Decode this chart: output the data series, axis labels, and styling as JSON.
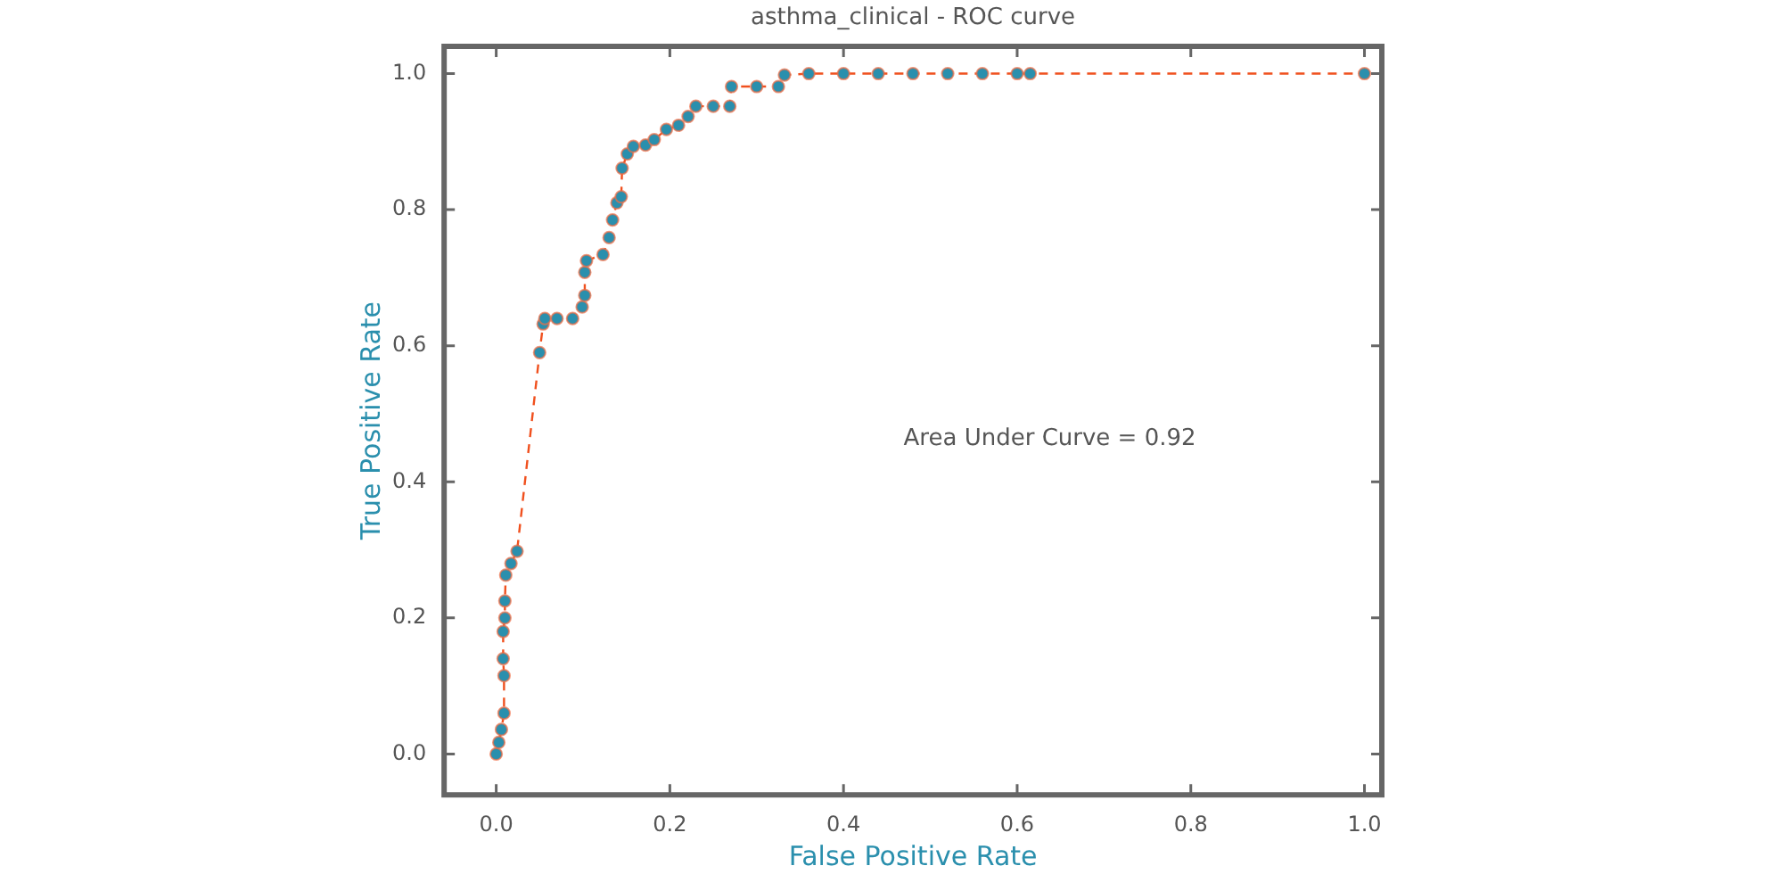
{
  "chart_data": {
    "type": "line",
    "title": "asthma_clinical - ROC curve",
    "xlabel": "False Positive Rate",
    "ylabel": "True Positive Rate",
    "annotations": [
      "Area Under Curve = 0.92"
    ],
    "xlim": [
      -0.06,
      1.02
    ],
    "ylim": [
      -0.06,
      1.04
    ],
    "xticks": [
      {
        "value": 0,
        "label": "0.0"
      },
      {
        "value": 0.2,
        "label": "0.2"
      },
      {
        "value": 0.4,
        "label": "0.4"
      },
      {
        "value": 0.6,
        "label": "0.6"
      },
      {
        "value": 0.8,
        "label": "0.8"
      },
      {
        "value": 1,
        "label": "1.0"
      }
    ],
    "yticks": [
      {
        "value": 0,
        "label": "0.0"
      },
      {
        "value": 0.2,
        "label": "0.2"
      },
      {
        "value": 0.4,
        "label": "0.4"
      },
      {
        "value": 0.6,
        "label": "0.6"
      },
      {
        "value": 0.8,
        "label": "0.8"
      },
      {
        "value": 1,
        "label": "1.0"
      }
    ],
    "marker": "circle",
    "line_style": "dashed",
    "series": [
      {
        "color": "#2a8fad",
        "x": [
          0,
          0.003,
          0.006,
          0.009,
          0.009,
          0.008,
          0.008,
          0.01,
          0.01,
          0.011,
          0.017,
          0.024,
          0.05,
          0.054,
          0.056,
          0.07,
          0.088,
          0.099,
          0.102,
          0.102,
          0.104,
          0.123,
          0.13,
          0.134,
          0.139,
          0.144,
          0.145,
          0.151,
          0.158,
          0.172,
          0.182,
          0.196,
          0.21,
          0.221,
          0.23,
          0.25,
          0.269,
          0.271,
          0.3,
          0.325,
          0.332,
          0.36,
          0.4,
          0.44,
          0.48,
          0.52,
          0.56,
          0.6,
          0.615,
          1
        ],
        "values": [
          0,
          0.017,
          0.036,
          0.06,
          0.115,
          0.14,
          0.18,
          0.2,
          0.225,
          0.263,
          0.28,
          0.298,
          0.59,
          0.632,
          0.64,
          0.64,
          0.64,
          0.657,
          0.674,
          0.708,
          0.725,
          0.734,
          0.759,
          0.785,
          0.81,
          0.819,
          0.861,
          0.882,
          0.893,
          0.895,
          0.903,
          0.918,
          0.924,
          0.937,
          0.952,
          0.952,
          0.952,
          0.981,
          0.981,
          0.981,
          0.998,
          1,
          1,
          1,
          1,
          1,
          1,
          1,
          1,
          1
        ]
      }
    ]
  }
}
